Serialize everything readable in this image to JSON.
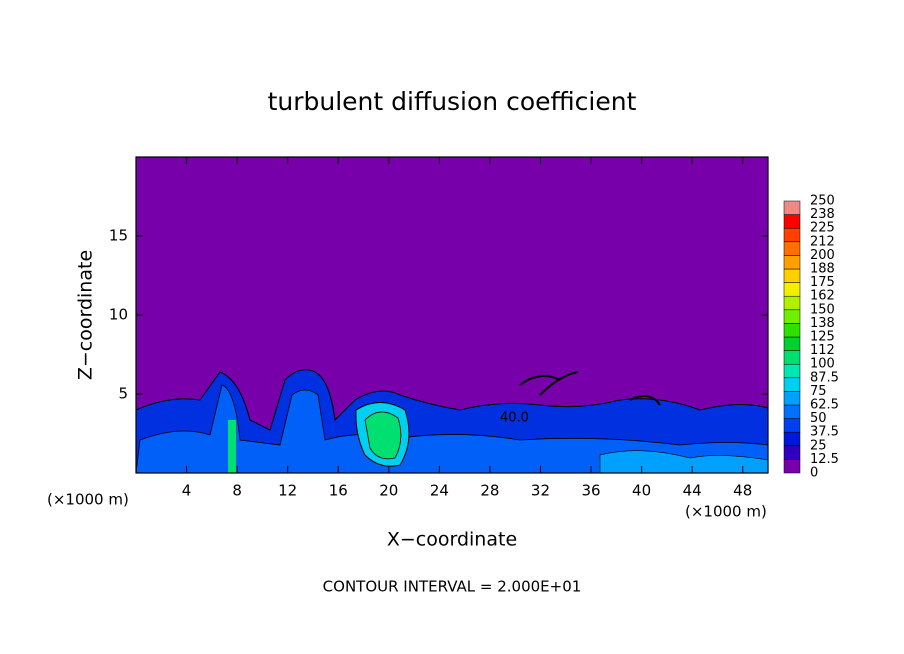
{
  "chart_data": {
    "type": "contour",
    "title": "turbulent diffusion coefficient",
    "xlabel": "X−coordinate",
    "ylabel": "Z−coordinate",
    "x_unit": "(×1000 m)",
    "annotation": "CONTOUR INTERVAL = 2.000E+01",
    "contour_label": "40.0",
    "xlim": [
      0,
      50
    ],
    "xticks": [
      4,
      8,
      12,
      16,
      20,
      24,
      28,
      32,
      36,
      40,
      44,
      48
    ],
    "ylim": [
      0,
      20
    ],
    "yticks": [
      5,
      10,
      15
    ],
    "colorbar": {
      "levels": [
        0,
        12.5,
        25,
        37.5,
        50,
        62.5,
        75,
        87.5,
        100,
        112,
        125,
        138,
        150,
        162,
        175,
        188,
        200,
        212,
        225,
        238,
        250
      ],
      "colors": [
        "#7800aa",
        "#3000c0",
        "#0018d8",
        "#0040f0",
        "#0070ff",
        "#00a0ff",
        "#00d0f0",
        "#00e8b0",
        "#00e070",
        "#00d030",
        "#30e000",
        "#70f000",
        "#b0f000",
        "#f0f000",
        "#ffd000",
        "#ffa000",
        "#ff7000",
        "#ff4000",
        "#ff0000",
        "#f08888"
      ]
    }
  }
}
